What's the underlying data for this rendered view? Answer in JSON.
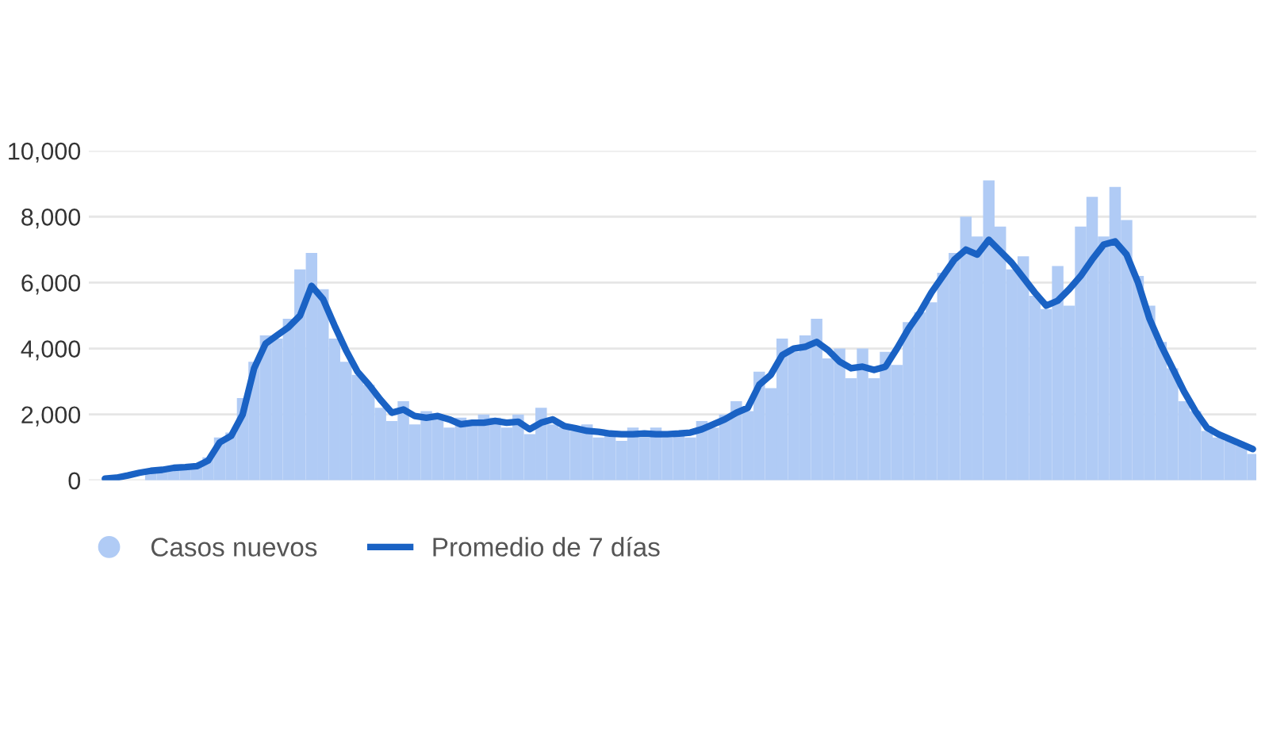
{
  "chart_data": {
    "type": "bar",
    "categories": [
      null,
      null,
      null,
      null,
      null,
      null,
      null,
      null,
      null,
      null,
      null,
      null,
      null,
      null,
      null,
      null,
      null,
      null,
      null,
      null,
      null,
      null,
      null,
      null,
      null,
      null,
      null,
      null,
      null,
      null,
      null,
      null,
      null,
      null,
      null,
      null,
      null,
      null,
      null,
      null,
      null,
      null,
      null,
      null,
      null,
      null,
      null,
      null,
      null,
      null,
      null,
      null,
      null,
      null,
      null,
      null,
      null,
      null,
      null,
      null,
      null,
      null,
      null,
      null,
      null,
      null,
      null,
      null,
      null,
      null,
      null,
      null,
      null,
      null,
      null,
      null,
      null,
      null,
      null,
      null,
      null,
      null,
      null,
      null,
      null,
      null,
      null,
      null,
      null,
      null,
      null,
      null,
      null,
      null,
      null,
      null,
      null,
      null,
      null,
      null,
      null
    ],
    "series": [
      {
        "name": "Casos nuevos",
        "color": "#b0cbf5",
        "values": [
          null,
          null,
          null,
          null,
          300,
          340,
          380,
          420,
          450,
          700,
          1300,
          1450,
          2500,
          3600,
          4400,
          4300,
          4900,
          6400,
          6900,
          5800,
          4300,
          3600,
          3200,
          2900,
          2200,
          1800,
          2400,
          1700,
          2100,
          1900,
          1600,
          1900,
          1700,
          2000,
          1900,
          1600,
          2000,
          1400,
          2200,
          1700,
          1600,
          1500,
          1700,
          1300,
          1500,
          1200,
          1600,
          1300,
          1600,
          1300,
          1500,
          1300,
          1800,
          1600,
          2000,
          2400,
          2100,
          3300,
          2800,
          4300,
          3900,
          4400,
          4900,
          3700,
          4000,
          3100,
          4000,
          3100,
          3900,
          3500,
          4800,
          5100,
          5400,
          6300,
          6900,
          8000,
          7400,
          9100,
          7700,
          6400,
          6800,
          5600,
          5200,
          6500,
          5300,
          7700,
          8600,
          7400,
          8900,
          7900,
          6200,
          5300,
          4200,
          3400,
          2400,
          2100,
          1500,
          1300,
          1200,
          1050,
          800
        ]
      },
      {
        "name": "Promedio de 7 días",
        "type": "line",
        "color": "#1a62c4",
        "values": [
          50,
          80,
          150,
          230,
          290,
          320,
          380,
          400,
          430,
          600,
          1150,
          1350,
          2000,
          3400,
          4150,
          4400,
          4650,
          5000,
          5900,
          5500,
          4700,
          3950,
          3300,
          2900,
          2450,
          2050,
          2150,
          1950,
          1900,
          1950,
          1850,
          1700,
          1750,
          1750,
          1800,
          1750,
          1780,
          1550,
          1750,
          1850,
          1650,
          1580,
          1500,
          1470,
          1420,
          1400,
          1400,
          1420,
          1400,
          1400,
          1420,
          1450,
          1550,
          1700,
          1850,
          2050,
          2200,
          2900,
          3200,
          3800,
          4000,
          4050,
          4200,
          3950,
          3600,
          3400,
          3450,
          3350,
          3450,
          4000,
          4600,
          5100,
          5700,
          6200,
          6700,
          7000,
          6850,
          7300,
          6950,
          6600,
          6150,
          5700,
          5300,
          5450,
          5800,
          6200,
          6700,
          7150,
          7250,
          6850,
          6000,
          4900,
          4100,
          3400,
          2700,
          2100,
          1600,
          1400,
          1250,
          1100,
          950
        ]
      }
    ],
    "ylim": [
      0,
      10000
    ],
    "yticks": [
      0,
      {
        "value": 2000,
        "label": "2,000"
      },
      {
        "value": 4000,
        "label": "4,000"
      },
      {
        "value": 6000,
        "label": "6,000"
      },
      {
        "value": 8000,
        "label": "8,000"
      },
      {
        "value": 10000,
        "label": "10,000"
      }
    ],
    "grid": "y",
    "legend": "bottom",
    "tick_labels": "y",
    "marker": "none"
  }
}
